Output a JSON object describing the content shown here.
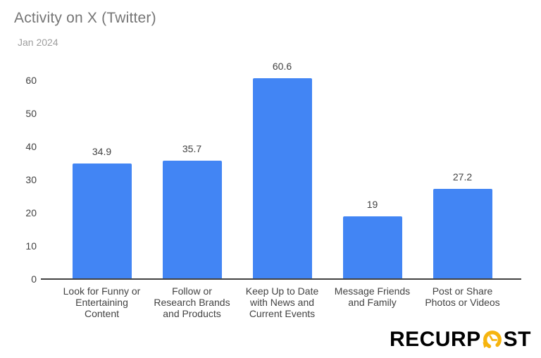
{
  "chart": {
    "title": "Activity on X (Twitter)",
    "subtitle": "Jan 2024"
  },
  "chart_data": {
    "type": "bar",
    "title": "Activity on X (Twitter)",
    "subtitle": "Jan 2024",
    "categories": [
      "Look for Funny or Entertaining Content",
      "Follow or Research Brands and Products",
      "Keep Up to Date with News and Current Events",
      "Message Friends and Family",
      "Post or Share Photos or Videos"
    ],
    "category_wrap": [
      [
        "Look for Funny or",
        "Entertaining",
        "Content"
      ],
      [
        "Follow or",
        "Research Brands",
        "and Products"
      ],
      [
        "Keep Up to Date",
        "with News and",
        "Current Events"
      ],
      [
        "Message Friends",
        "and Family"
      ],
      [
        "Post or Share",
        "Photos or Videos"
      ]
    ],
    "values": [
      34.9,
      35.7,
      60.6,
      19,
      27.2
    ],
    "value_labels": [
      "34.9",
      "35.7",
      "60.6",
      "19",
      "27.2"
    ],
    "y_ticks": [
      0,
      10,
      20,
      30,
      40,
      50,
      60
    ],
    "ylim": [
      0,
      63.8
    ],
    "xlabel": "",
    "ylabel": "",
    "grid": false,
    "legend": "none",
    "bar_color": "#4285F4"
  },
  "logo": {
    "part1": "RECURP",
    "part2": "ST",
    "icon": "clock-recur-icon",
    "text_color": "#231f20",
    "accent_color": "#F6B40E"
  },
  "colors": {
    "background": "#ffffff",
    "title": "#757575",
    "subtitle": "#9e9e9e",
    "axis_labels": "#424242",
    "axis_line": "#424242",
    "bar": "#4285F4"
  }
}
